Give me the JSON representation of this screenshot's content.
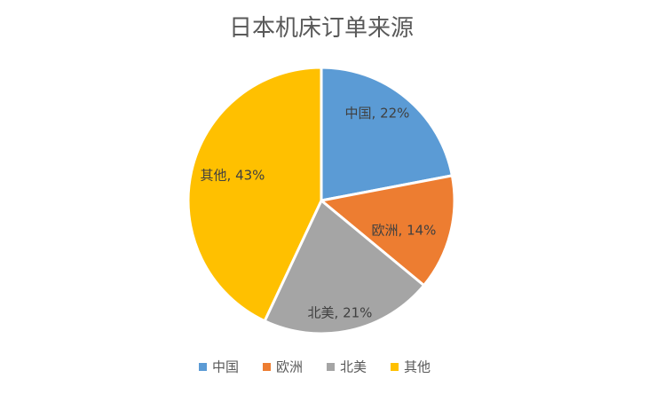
{
  "chart_data": {
    "type": "pie",
    "title": "日本机床订单来源",
    "categories": [
      "中国",
      "欧洲",
      "北美",
      "其他"
    ],
    "values": [
      22,
      14,
      21,
      43
    ],
    "labels": [
      "中国, 22%",
      "欧洲, 14%",
      "北美, 21%",
      "其他, 43%"
    ],
    "colors": [
      "#5B9BD5",
      "#ED7D31",
      "#A5A5A5",
      "#FFC000"
    ],
    "start_angle_deg": 0,
    "direction": "clockwise",
    "legend": "bottom",
    "slice_border_color": "#ffffff"
  }
}
